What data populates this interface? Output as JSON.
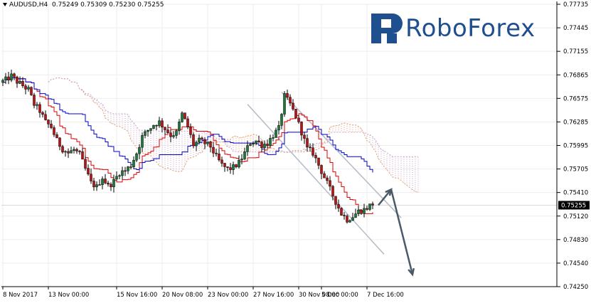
{
  "header": {
    "symbol_timeframe": "AUDUSD,H4",
    "ohlc": "0.75249 0.75309 0.75230 0.75255"
  },
  "logo": {
    "text": "RoboForex"
  },
  "colors": {
    "bull": "#1a7a3a",
    "bear": "#c01010",
    "tenkan": "#e00000",
    "kijun": "#0000cc",
    "cloud_a": "#e6a070",
    "cloud_b": "#c6a0c6",
    "channel": "#b4bcc8",
    "arrow": "#4a5a68",
    "logo": "#1f4f8f"
  },
  "chart_data": {
    "type": "candlestick",
    "title": "",
    "symbol": "AUDUSD",
    "timeframe": "H4",
    "indicators": [
      "Ichimoku Kinko Hyo"
    ],
    "grid": true,
    "y_axis": {
      "ticks": [
        "0.77735",
        "0.77445",
        "0.77155",
        "0.76865",
        "0.76575",
        "0.76285",
        "0.75995",
        "0.75705",
        "0.75410",
        "0.75120",
        "0.74830",
        "0.74540",
        "0.74250"
      ],
      "range": [
        0.7425,
        0.77735
      ],
      "current_price_label": "0.75255",
      "current_price": 0.75255
    },
    "x_axis": {
      "ticks": [
        "8 Nov 2017",
        "13 Nov 00:00",
        "15 Nov 16:00",
        "20 Nov 08:00",
        "23 Nov 00:00",
        "27 Nov 16:00",
        "30 Nov 08:00",
        "5 Dec 00:00",
        "7 Dec 16:00"
      ]
    },
    "price_path": [
      [
        0,
        0.7677
      ],
      [
        2,
        0.768
      ],
      [
        4,
        0.7685
      ],
      [
        6,
        0.7678
      ],
      [
        8,
        0.7673
      ],
      [
        10,
        0.7668
      ],
      [
        12,
        0.765
      ],
      [
        14,
        0.7642
      ],
      [
        16,
        0.7628
      ],
      [
        18,
        0.7622
      ],
      [
        20,
        0.7605
      ],
      [
        22,
        0.7595
      ],
      [
        24,
        0.759
      ],
      [
        26,
        0.7594
      ],
      [
        28,
        0.7588
      ],
      [
        30,
        0.757
      ],
      [
        32,
        0.7553
      ],
      [
        34,
        0.7548
      ],
      [
        36,
        0.756
      ],
      [
        38,
        0.7549
      ],
      [
        40,
        0.7555
      ],
      [
        42,
        0.7566
      ],
      [
        44,
        0.7568
      ],
      [
        46,
        0.7575
      ],
      [
        48,
        0.759
      ],
      [
        50,
        0.761
      ],
      [
        52,
        0.7618
      ],
      [
        54,
        0.7625
      ],
      [
        56,
        0.7628
      ],
      [
        58,
        0.762
      ],
      [
        60,
        0.7612
      ],
      [
        62,
        0.7615
      ],
      [
        64,
        0.7638
      ],
      [
        66,
        0.7622
      ],
      [
        68,
        0.76
      ],
      [
        70,
        0.7605
      ],
      [
        72,
        0.7602
      ],
      [
        74,
        0.7598
      ],
      [
        76,
        0.7585
      ],
      [
        78,
        0.7575
      ],
      [
        80,
        0.757
      ],
      [
        82,
        0.7572
      ],
      [
        84,
        0.7578
      ],
      [
        86,
        0.759
      ],
      [
        88,
        0.7603
      ],
      [
        90,
        0.7605
      ],
      [
        92,
        0.76
      ],
      [
        94,
        0.7602
      ],
      [
        96,
        0.7612
      ],
      [
        98,
        0.762
      ],
      [
        100,
        0.766
      ],
      [
        102,
        0.765
      ],
      [
        104,
        0.7635
      ],
      [
        106,
        0.7616
      ],
      [
        108,
        0.7595
      ],
      [
        110,
        0.759
      ],
      [
        112,
        0.7575
      ],
      [
        114,
        0.756
      ],
      [
        116,
        0.7545
      ],
      [
        118,
        0.753
      ],
      [
        120,
        0.7515
      ],
      [
        122,
        0.7508
      ],
      [
        124,
        0.7512
      ],
      [
        126,
        0.7518
      ],
      [
        128,
        0.752
      ],
      [
        130,
        0.7525
      ]
    ],
    "forecast": [
      {
        "from": 0.75255,
        "to": 0.7545
      },
      {
        "from": 0.7545,
        "to": 0.744
      }
    ]
  }
}
